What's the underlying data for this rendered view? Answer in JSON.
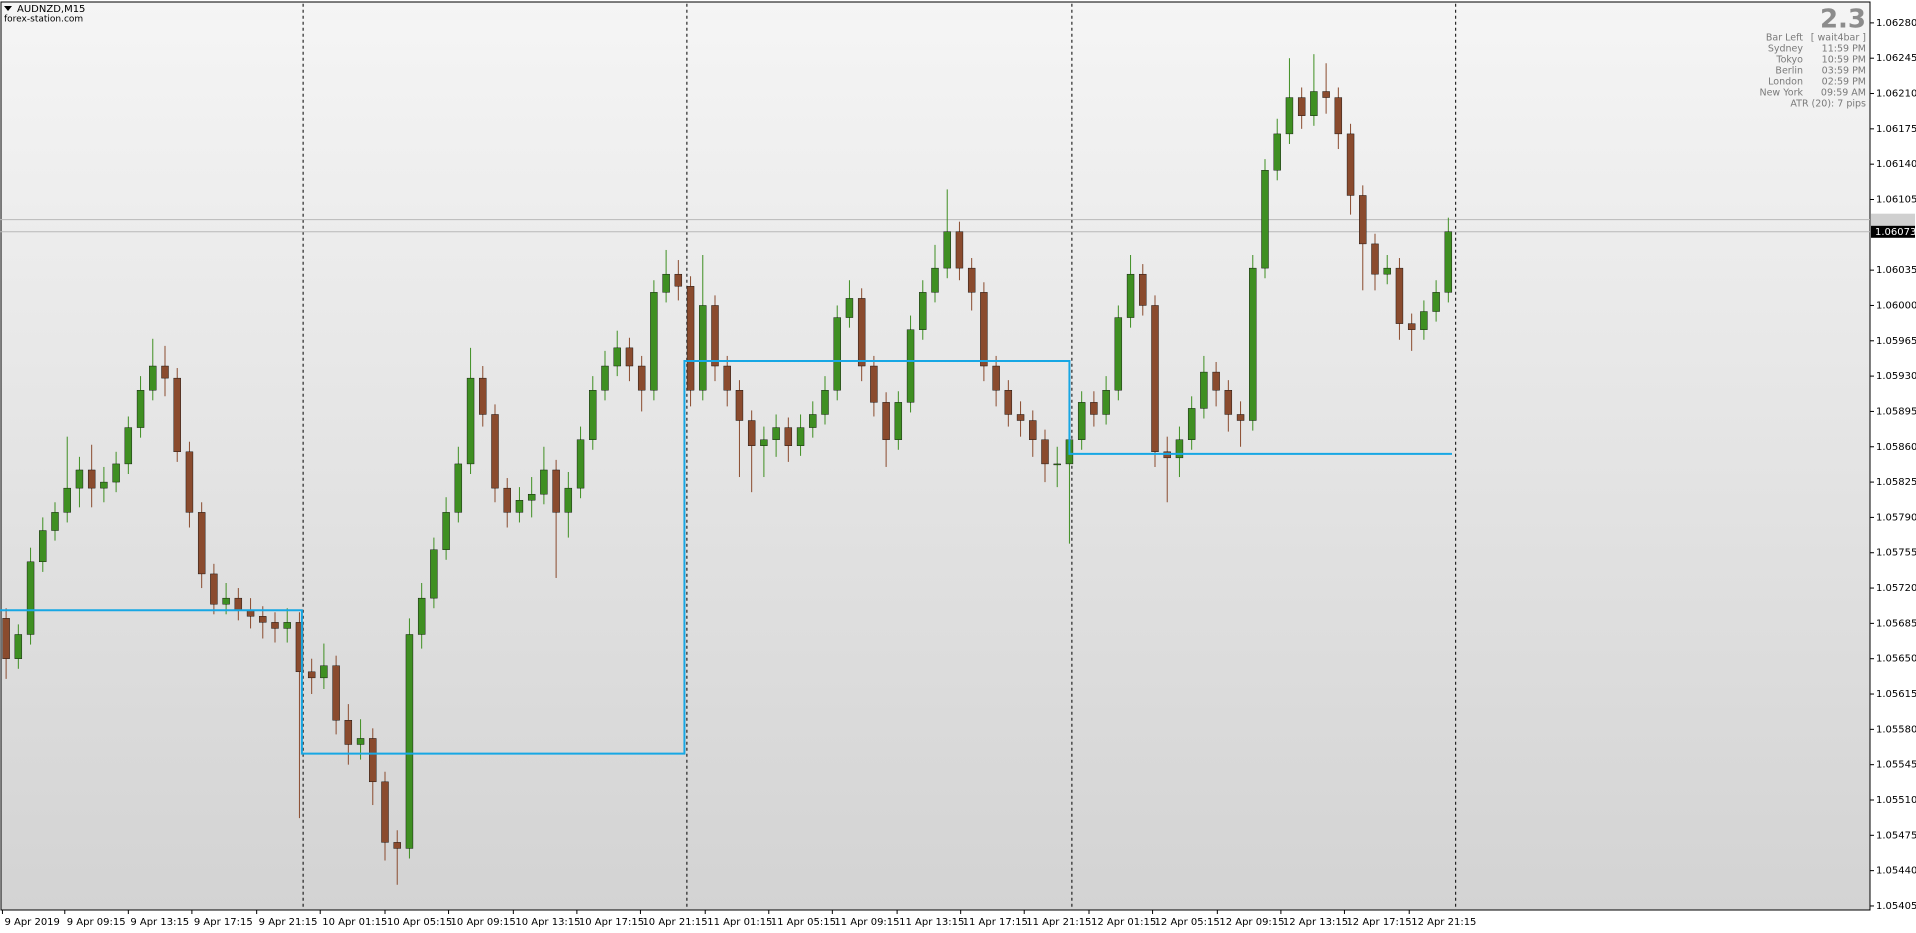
{
  "chart_data": {
    "type": "candlestick",
    "symbol": "AUDNZD,M15",
    "source": "forex-station.com",
    "info": {
      "big": 2.3,
      "rows": [
        [
          "Bar Left",
          "[ wait4bar ]"
        ],
        [
          "Sydney",
          "11:59 PM"
        ],
        [
          "Tokyo",
          "10:59 PM"
        ],
        [
          "Berlin",
          "03:59 PM"
        ],
        [
          "London",
          "02:59 PM"
        ],
        [
          "New York",
          "09:59 AM"
        ]
      ],
      "atr": "ATR (20): 7 pips"
    },
    "up_color": "#3f8f22",
    "down_color": "#8a4b2e",
    "open": [
      1.0569,
      1.0565,
      1.05674,
      1.05746,
      1.05777,
      1.05795,
      1.05819,
      1.05837,
      1.05819,
      1.05825,
      1.05843,
      1.05879,
      1.05916,
      1.0594,
      1.05928,
      1.05855,
      1.05795,
      1.05734,
      1.05704,
      1.0571,
      1.05698,
      1.05692,
      1.05686,
      1.0568,
      1.05686,
      1.05637,
      1.05631,
      1.05643,
      1.05589,
      1.05565,
      1.05571,
      1.05528,
      1.05468,
      1.05462,
      1.05674,
      1.0571,
      1.05758,
      1.05795,
      1.05843,
      1.05928,
      1.05892,
      1.05819,
      1.05795,
      1.05807,
      1.05813,
      1.05837,
      1.05795,
      1.05819,
      1.05867,
      1.05916,
      1.0594,
      1.05958,
      1.0594,
      1.05916,
      1.06013,
      1.06031,
      1.06019,
      1.05916,
      1.06,
      1.0594,
      1.05916,
      1.05886,
      1.05861,
      1.05867,
      1.05879,
      1.05861,
      1.05879,
      1.05892,
      1.05916,
      1.05988,
      1.06007,
      1.0594,
      1.05904,
      1.05867,
      1.05904,
      1.05976,
      1.06013,
      1.06037,
      1.06073,
      1.06037,
      1.06013,
      1.0594,
      1.05916,
      1.05892,
      1.05886,
      1.05867,
      1.05843,
      1.05843,
      1.05867,
      1.05904,
      1.05892,
      1.05916,
      1.05988,
      1.06031,
      1.06,
      1.05855,
      1.05849,
      1.05867,
      1.05898,
      1.05934,
      1.05916,
      1.05892,
      1.05886,
      1.06037,
      1.06134,
      1.0617,
      1.06206,
      1.06188,
      1.06212,
      1.06206,
      1.0617,
      1.06109,
      1.06061,
      1.06031,
      1.06037,
      1.05982,
      1.05976,
      1.05994,
      1.06013
    ],
    "high": [
      1.057,
      1.05684,
      1.0576,
      1.0579,
      1.05805,
      1.0587,
      1.0585,
      1.05862,
      1.0584,
      1.05855,
      1.0589,
      1.0593,
      1.05967,
      1.0596,
      1.05938,
      1.05865,
      1.05805,
      1.05744,
      1.05725,
      1.0572,
      1.0571,
      1.05702,
      1.05696,
      1.057,
      1.05696,
      1.0565,
      1.05665,
      1.05653,
      1.05605,
      1.0559,
      1.05581,
      1.05538,
      1.0548,
      1.0569,
      1.05725,
      1.0577,
      1.0581,
      1.0586,
      1.05958,
      1.0594,
      1.05902,
      1.05829,
      1.0582,
      1.0583,
      1.0586,
      1.05847,
      1.05835,
      1.0588,
      1.0593,
      1.05955,
      1.05975,
      1.05968,
      1.0595,
      1.06025,
      1.06055,
      1.06045,
      1.06029,
      1.0605,
      1.0601,
      1.0595,
      1.05926,
      1.05896,
      1.0588,
      1.05892,
      1.05889,
      1.05892,
      1.05905,
      1.0593,
      1.06,
      1.06025,
      1.06017,
      1.0595,
      1.05914,
      1.05915,
      1.0599,
      1.06025,
      1.0606,
      1.06115,
      1.06083,
      1.06047,
      1.06023,
      1.0595,
      1.05926,
      1.05905,
      1.05896,
      1.05877,
      1.0586,
      1.0588,
      1.05915,
      1.05915,
      1.0593,
      1.06,
      1.0605,
      1.06041,
      1.0601,
      1.0587,
      1.0588,
      1.0591,
      1.0595,
      1.05944,
      1.05926,
      1.05905,
      1.0605,
      1.06145,
      1.06185,
      1.06245,
      1.06216,
      1.06249,
      1.0624,
      1.06216,
      1.0618,
      1.06119,
      1.06071,
      1.0605,
      1.06047,
      1.05992,
      1.06005,
      1.06025,
      1.06087
    ],
    "low": [
      1.0563,
      1.0564,
      1.05664,
      1.05736,
      1.05767,
      1.05785,
      1.058,
      1.058,
      1.05805,
      1.05815,
      1.05833,
      1.05869,
      1.05906,
      1.0591,
      1.05845,
      1.0578,
      1.0572,
      1.05694,
      1.05694,
      1.05688,
      1.0568,
      1.0567,
      1.05666,
      1.05666,
      1.05492,
      1.05615,
      1.0562,
      1.05575,
      1.05545,
      1.0555,
      1.05505,
      1.0545,
      1.05426,
      1.05452,
      1.0566,
      1.057,
      1.05748,
      1.05785,
      1.05833,
      1.0588,
      1.05805,
      1.0578,
      1.05785,
      1.0579,
      1.05803,
      1.0573,
      1.0577,
      1.05809,
      1.05857,
      1.05906,
      1.0593,
      1.05925,
      1.05895,
      1.05906,
      1.06003,
      1.06005,
      1.059,
      1.05906,
      1.05925,
      1.059,
      1.0583,
      1.05815,
      1.0583,
      1.0585,
      1.05845,
      1.05851,
      1.05869,
      1.05882,
      1.05906,
      1.05978,
      1.05925,
      1.0589,
      1.0584,
      1.05857,
      1.05894,
      1.05966,
      1.06003,
      1.06027,
      1.06025,
      1.05995,
      1.05925,
      1.059,
      1.0588,
      1.0587,
      1.0585,
      1.05825,
      1.0582,
      1.05764,
      1.05857,
      1.0588,
      1.05882,
      1.05906,
      1.05978,
      1.0599,
      1.0584,
      1.05805,
      1.0583,
      1.05857,
      1.05888,
      1.059,
      1.05875,
      1.0586,
      1.05876,
      1.06027,
      1.06124,
      1.0616,
      1.06175,
      1.06178,
      1.0619,
      1.06155,
      1.0609,
      1.06015,
      1.06015,
      1.06021,
      1.05966,
      1.05955,
      1.05966,
      1.05984,
      1.06003
    ],
    "close": [
      1.0565,
      1.05674,
      1.05746,
      1.05777,
      1.05795,
      1.05819,
      1.05837,
      1.05819,
      1.05825,
      1.05843,
      1.05879,
      1.05916,
      1.0594,
      1.05928,
      1.05855,
      1.05795,
      1.05734,
      1.05704,
      1.0571,
      1.05698,
      1.05692,
      1.05686,
      1.0568,
      1.05686,
      1.05637,
      1.05631,
      1.05643,
      1.05589,
      1.05565,
      1.05571,
      1.05528,
      1.05468,
      1.05462,
      1.05674,
      1.0571,
      1.05758,
      1.05795,
      1.05843,
      1.05928,
      1.05892,
      1.05819,
      1.05795,
      1.05807,
      1.05813,
      1.05837,
      1.05795,
      1.05819,
      1.05867,
      1.05916,
      1.0594,
      1.05958,
      1.0594,
      1.05916,
      1.06013,
      1.06031,
      1.06019,
      1.05916,
      1.06,
      1.0594,
      1.05916,
      1.05886,
      1.05861,
      1.05867,
      1.05879,
      1.05861,
      1.05879,
      1.05892,
      1.05916,
      1.05988,
      1.06007,
      1.0594,
      1.05904,
      1.05867,
      1.05904,
      1.05976,
      1.06013,
      1.06037,
      1.06073,
      1.06037,
      1.06013,
      1.0594,
      1.05916,
      1.05892,
      1.05886,
      1.05867,
      1.05843,
      1.05843,
      1.05867,
      1.05904,
      1.05892,
      1.05916,
      1.05988,
      1.06031,
      1.06,
      1.05855,
      1.05849,
      1.05867,
      1.05898,
      1.05934,
      1.05916,
      1.05892,
      1.05886,
      1.06037,
      1.06134,
      1.0617,
      1.06206,
      1.06188,
      1.06212,
      1.06206,
      1.0617,
      1.06109,
      1.06061,
      1.06031,
      1.06037,
      1.05982,
      1.05976,
      1.05994,
      1.06013,
      1.06073
    ],
    "levels": {
      "color": "#17a7e4",
      "x": [
        -0.5,
        24.2,
        24.2,
        55.5,
        55.5,
        87.0,
        87.0,
        118.3
      ],
      "values": [
        1.05698,
        1.05698,
        1.05556,
        1.05556,
        1.05945,
        1.05945,
        1.05853,
        1.05853
      ]
    },
    "day_separators": [
      24.3,
      55.7,
      87.2,
      118.6
    ],
    "bid": 1.06073,
    "ask": 1.06085,
    "xlim": [
      -0.5,
      152.5
    ],
    "ylim": [
      1.05401,
      1.06299
    ],
    "xticks": [
      {
        "value": -0.3,
        "label": "9 Apr 2019"
      },
      {
        "value": 4.8,
        "label": "9 Apr 09:15"
      },
      {
        "value": 10.0,
        "label": "9 Apr 13:15"
      },
      {
        "value": 15.2,
        "label": "9 Apr 17:15"
      },
      {
        "value": 20.5,
        "label": "9 Apr 21:15"
      },
      {
        "value": 25.7,
        "label": "10 Apr 01:15"
      },
      {
        "value": 31.0,
        "label": "10 Apr 05:15"
      },
      {
        "value": 36.2,
        "label": "10 Apr 09:15"
      },
      {
        "value": 41.5,
        "label": "10 Apr 13:15"
      },
      {
        "value": 46.7,
        "label": "10 Apr 17:15"
      },
      {
        "value": 51.9,
        "label": "10 Apr 21:15"
      },
      {
        "value": 57.2,
        "label": "11 Apr 01:15"
      },
      {
        "value": 62.4,
        "label": "11 Apr 05:15"
      },
      {
        "value": 67.6,
        "label": "11 Apr 09:15"
      },
      {
        "value": 72.9,
        "label": "11 Apr 13:15"
      },
      {
        "value": 78.1,
        "label": "11 Apr 17:15"
      },
      {
        "value": 83.3,
        "label": "11 Apr 21:15"
      },
      {
        "value": 88.6,
        "label": "12 Apr 01:15"
      },
      {
        "value": 93.8,
        "label": "12 Apr 05:15"
      },
      {
        "value": 99.1,
        "label": "12 Apr 09:15"
      },
      {
        "value": 104.3,
        "label": "12 Apr 13:15"
      },
      {
        "value": 109.5,
        "label": "12 Apr 17:15"
      },
      {
        "value": 114.8,
        "label": "12 Apr 21:15"
      }
    ],
    "yticks": [
      {
        "value": 1.0628,
        "label": "1.06280"
      },
      1.06245,
      {
        "value": 1.0621,
        "label": "1.06210"
      },
      1.06175,
      {
        "value": 1.0614,
        "label": "1.06140"
      },
      1.06105,
      1.06035,
      {
        "value": 1.06,
        "label": "1.06000"
      },
      1.05965,
      {
        "value": 1.0593,
        "label": "1.05930"
      },
      1.05895,
      {
        "value": 1.0586,
        "label": "1.05860"
      },
      1.05825,
      {
        "value": 1.0579,
        "label": "1.05790"
      },
      1.05755,
      {
        "value": 1.0572,
        "label": "1.05720"
      },
      1.05685,
      {
        "value": 1.0565,
        "label": "1.05650"
      },
      1.05615,
      {
        "value": 1.0558,
        "label": "1.05580"
      },
      1.05545,
      {
        "value": 1.0551,
        "label": "1.05510"
      },
      1.05475,
      {
        "value": 1.0544,
        "label": "1.05440"
      },
      1.05405
    ]
  }
}
